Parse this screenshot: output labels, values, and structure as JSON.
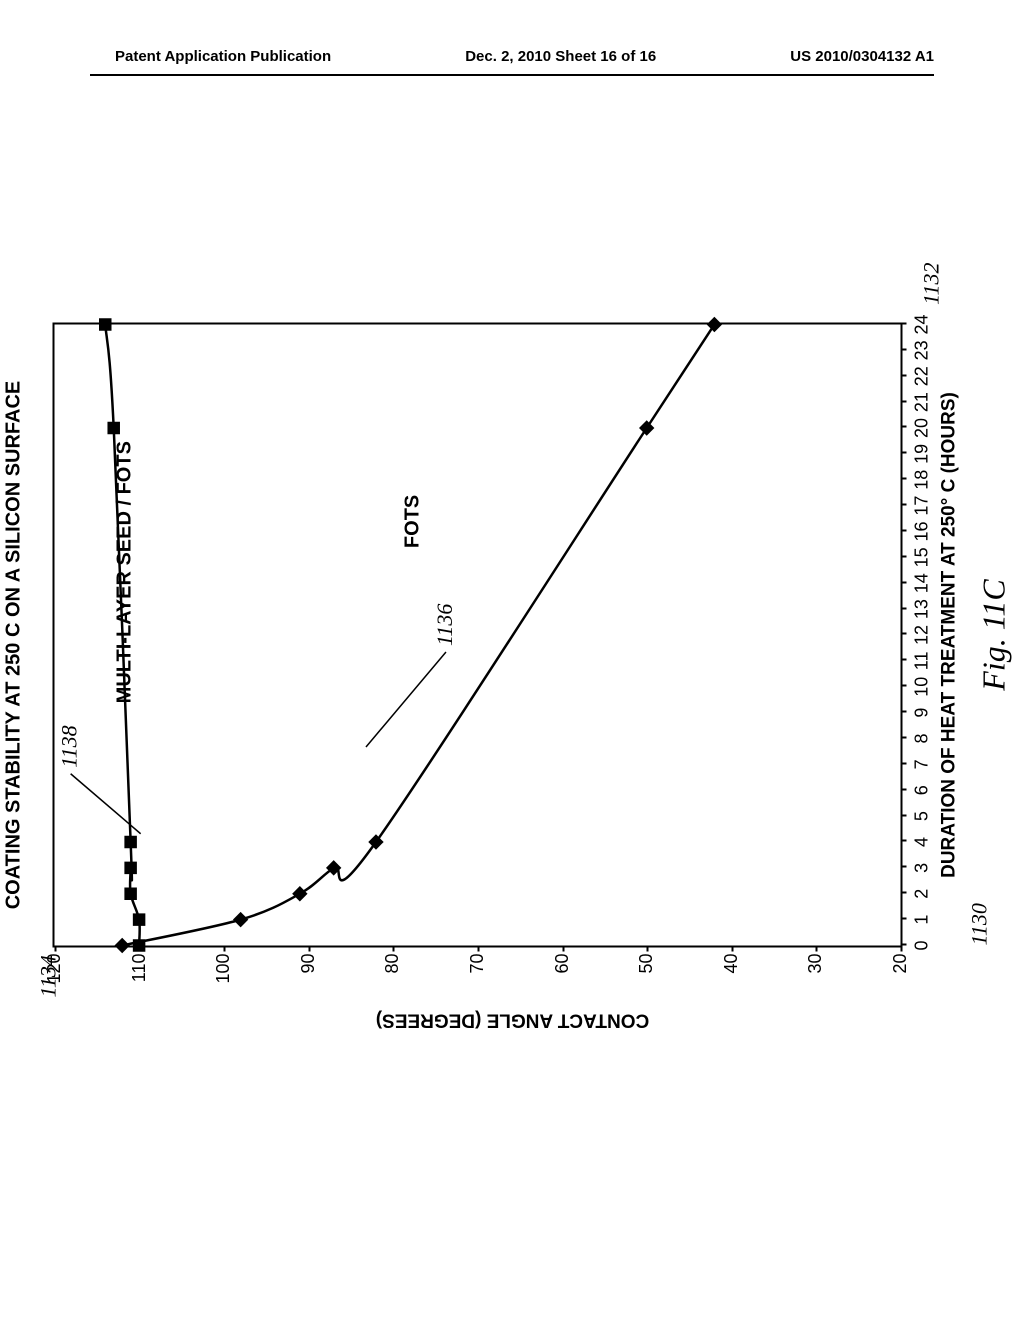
{
  "header": {
    "left": "Patent Application Publication",
    "center": "Dec. 2, 2010  Sheet 16 of 16",
    "right": "US 2010/0304132 A1"
  },
  "chart": {
    "type": "line",
    "title": "COATING STABILITY AT 250 C ON A SILICON SURFACE",
    "xlabel": "DURATION OF HEAT TREATMENT AT 250° C (HOURS)",
    "ylabel": "CONTACT ANGLE (DEGREES)",
    "figure_caption": "Fig. 11C",
    "xlim": [
      0,
      24
    ],
    "ylim": [
      20,
      120
    ],
    "ytick_step": 10,
    "xtick_step": 1,
    "background_color": "#ffffff",
    "axis_color": "#000000",
    "tick_fontsize": 18,
    "label_fontsize": 19,
    "title_fontsize": 20,
    "series": [
      {
        "name": "FOTS",
        "label": "FOTS",
        "marker": "diamond",
        "marker_size": 10,
        "line_width": 2.5,
        "color": "#000000",
        "points": [
          {
            "x": 0,
            "y": 112
          },
          {
            "x": 1,
            "y": 98
          },
          {
            "x": 2,
            "y": 91
          },
          {
            "x": 3,
            "y": 87
          },
          {
            "x": 4,
            "y": 82
          },
          {
            "x": 20,
            "y": 50
          },
          {
            "x": 24,
            "y": 42
          }
        ],
        "label_ref": "1136"
      },
      {
        "name": "MULTI-LAYER SEED / FOTS",
        "label": "MULTI-LAYER SEED / FOTS",
        "marker": "square",
        "marker_size": 10,
        "line_width": 2.5,
        "color": "#000000",
        "points": [
          {
            "x": 0,
            "y": 110
          },
          {
            "x": 1,
            "y": 110
          },
          {
            "x": 2,
            "y": 111
          },
          {
            "x": 3,
            "y": 111
          },
          {
            "x": 4,
            "y": 111
          },
          {
            "x": 20,
            "y": 113
          },
          {
            "x": 24,
            "y": 114
          }
        ],
        "label_ref": "1138"
      }
    ],
    "refs": {
      "fig_num": "1130",
      "x_axis": "1132",
      "y_axis": "1134",
      "series_fots": "1136",
      "series_multi": "1138"
    }
  }
}
